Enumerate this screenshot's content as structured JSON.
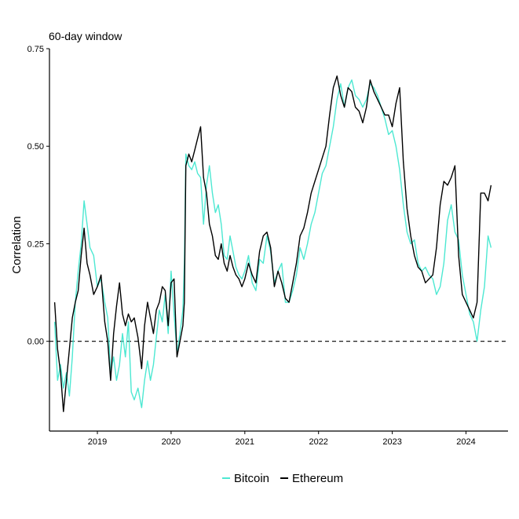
{
  "chart_data": {
    "type": "line",
    "title": "60-day window",
    "xlabel": "",
    "ylabel": "Correlation",
    "xlim": [
      2018.35,
      2024.57
    ],
    "ylim": [
      -0.23,
      0.75
    ],
    "x_ticks": [
      2019,
      2020,
      2021,
      2022,
      2023,
      2024
    ],
    "x_tick_labels": [
      "2019",
      "2020",
      "2021",
      "2022",
      "2023",
      "2024"
    ],
    "y_ticks": [
      0.0,
      0.25,
      0.5,
      0.75
    ],
    "y_tick_labels": [
      "0.00",
      "0.25",
      "0.50",
      "0.75"
    ],
    "reference_line": {
      "y": 0.0,
      "style": "dashed"
    },
    "grid": false,
    "legend_position": "bottom",
    "series": [
      {
        "name": "Bitcoin",
        "color": "#4DE8D2",
        "x": [
          2018.42,
          2018.46,
          2018.5,
          2018.54,
          2018.58,
          2018.62,
          2018.66,
          2018.7,
          2018.74,
          2018.78,
          2018.82,
          2018.86,
          2018.9,
          2018.95,
          2019.0,
          2019.05,
          2019.1,
          2019.14,
          2019.18,
          2019.22,
          2019.26,
          2019.3,
          2019.34,
          2019.38,
          2019.42,
          2019.46,
          2019.5,
          2019.55,
          2019.6,
          2019.64,
          2019.68,
          2019.72,
          2019.76,
          2019.8,
          2019.84,
          2019.88,
          2019.92,
          2019.96,
          2020.0,
          2020.04,
          2020.08,
          2020.12,
          2020.16,
          2020.18,
          2020.2,
          2020.24,
          2020.28,
          2020.32,
          2020.36,
          2020.4,
          2020.44,
          2020.48,
          2020.52,
          2020.56,
          2020.6,
          2020.64,
          2020.68,
          2020.72,
          2020.76,
          2020.8,
          2020.84,
          2020.88,
          2020.92,
          2020.96,
          2021.0,
          2021.05,
          2021.1,
          2021.15,
          2021.2,
          2021.25,
          2021.3,
          2021.35,
          2021.4,
          2021.45,
          2021.5,
          2021.55,
          2021.6,
          2021.65,
          2021.7,
          2021.75,
          2021.8,
          2021.85,
          2021.9,
          2021.95,
          2022.0,
          2022.05,
          2022.1,
          2022.15,
          2022.2,
          2022.25,
          2022.3,
          2022.35,
          2022.4,
          2022.45,
          2022.5,
          2022.55,
          2022.6,
          2022.65,
          2022.7,
          2022.75,
          2022.8,
          2022.85,
          2022.9,
          2022.95,
          2023.0,
          2023.05,
          2023.1,
          2023.15,
          2023.2,
          2023.25,
          2023.3,
          2023.35,
          2023.4,
          2023.45,
          2023.5,
          2023.55,
          2023.6,
          2023.65,
          2023.7,
          2023.75,
          2023.8,
          2023.85,
          2023.9,
          2023.95,
          2024.0,
          2024.05,
          2024.1,
          2024.15,
          2024.2,
          2024.25,
          2024.3,
          2024.34
        ],
        "y": [
          0.05,
          -0.1,
          -0.06,
          -0.12,
          -0.08,
          -0.14,
          -0.04,
          0.1,
          0.18,
          0.25,
          0.36,
          0.3,
          0.24,
          0.22,
          0.14,
          0.16,
          0.1,
          0.06,
          -0.08,
          -0.04,
          -0.1,
          -0.06,
          0.02,
          -0.04,
          0.05,
          -0.13,
          -0.15,
          -0.12,
          -0.17,
          -0.1,
          -0.05,
          -0.1,
          -0.06,
          0.01,
          0.08,
          0.05,
          0.12,
          0.02,
          0.18,
          0.07,
          -0.03,
          0.02,
          0.08,
          0.2,
          0.48,
          0.45,
          0.44,
          0.46,
          0.43,
          0.42,
          0.3,
          0.4,
          0.45,
          0.38,
          0.33,
          0.35,
          0.3,
          0.22,
          0.21,
          0.27,
          0.23,
          0.19,
          0.17,
          0.16,
          0.18,
          0.22,
          0.15,
          0.13,
          0.21,
          0.2,
          0.27,
          0.23,
          0.15,
          0.18,
          0.2,
          0.1,
          0.1,
          0.13,
          0.17,
          0.24,
          0.21,
          0.25,
          0.3,
          0.33,
          0.38,
          0.43,
          0.45,
          0.5,
          0.55,
          0.62,
          0.66,
          0.6,
          0.65,
          0.67,
          0.63,
          0.62,
          0.6,
          0.62,
          0.66,
          0.65,
          0.63,
          0.6,
          0.57,
          0.53,
          0.54,
          0.5,
          0.44,
          0.35,
          0.28,
          0.25,
          0.26,
          0.2,
          0.18,
          0.19,
          0.17,
          0.16,
          0.12,
          0.14,
          0.2,
          0.31,
          0.35,
          0.28,
          0.26,
          0.17,
          0.12,
          0.07,
          0.05,
          0.0,
          0.08,
          0.14,
          0.27,
          0.24
        ]
      },
      {
        "name": "Ethereum",
        "color": "#000000",
        "x": [
          2018.42,
          2018.46,
          2018.5,
          2018.54,
          2018.58,
          2018.62,
          2018.66,
          2018.7,
          2018.74,
          2018.78,
          2018.82,
          2018.86,
          2018.9,
          2018.95,
          2019.0,
          2019.05,
          2019.1,
          2019.14,
          2019.18,
          2019.22,
          2019.26,
          2019.3,
          2019.34,
          2019.38,
          2019.42,
          2019.46,
          2019.5,
          2019.55,
          2019.6,
          2019.64,
          2019.68,
          2019.72,
          2019.76,
          2019.8,
          2019.84,
          2019.88,
          2019.92,
          2019.96,
          2020.0,
          2020.04,
          2020.08,
          2020.12,
          2020.16,
          2020.18,
          2020.2,
          2020.24,
          2020.28,
          2020.32,
          2020.36,
          2020.4,
          2020.44,
          2020.48,
          2020.52,
          2020.56,
          2020.6,
          2020.64,
          2020.68,
          2020.72,
          2020.76,
          2020.8,
          2020.84,
          2020.88,
          2020.92,
          2020.96,
          2021.0,
          2021.05,
          2021.1,
          2021.15,
          2021.2,
          2021.25,
          2021.3,
          2021.35,
          2021.4,
          2021.45,
          2021.5,
          2021.55,
          2021.6,
          2021.65,
          2021.7,
          2021.75,
          2021.8,
          2021.85,
          2021.9,
          2021.95,
          2022.0,
          2022.05,
          2022.1,
          2022.15,
          2022.2,
          2022.25,
          2022.3,
          2022.35,
          2022.4,
          2022.45,
          2022.5,
          2022.55,
          2022.6,
          2022.65,
          2022.7,
          2022.75,
          2022.8,
          2022.85,
          2022.9,
          2022.95,
          2023.0,
          2023.05,
          2023.1,
          2023.15,
          2023.2,
          2023.25,
          2023.3,
          2023.35,
          2023.4,
          2023.45,
          2023.5,
          2023.55,
          2023.6,
          2023.65,
          2023.7,
          2023.75,
          2023.8,
          2023.85,
          2023.9,
          2023.95,
          2024.0,
          2024.05,
          2024.1,
          2024.15,
          2024.2,
          2024.25,
          2024.3,
          2024.34
        ],
        "y": [
          0.1,
          -0.02,
          -0.08,
          -0.18,
          -0.1,
          -0.02,
          0.06,
          0.1,
          0.13,
          0.22,
          0.29,
          0.2,
          0.17,
          0.12,
          0.14,
          0.17,
          0.05,
          0.0,
          -0.1,
          0.02,
          0.09,
          0.15,
          0.07,
          0.04,
          0.07,
          0.05,
          0.06,
          0.01,
          -0.07,
          0.04,
          0.1,
          0.06,
          0.02,
          0.08,
          0.1,
          0.14,
          0.13,
          0.04,
          0.15,
          0.16,
          -0.04,
          0.0,
          0.04,
          0.1,
          0.45,
          0.48,
          0.46,
          0.49,
          0.52,
          0.55,
          0.42,
          0.38,
          0.3,
          0.27,
          0.22,
          0.21,
          0.25,
          0.2,
          0.18,
          0.22,
          0.19,
          0.17,
          0.16,
          0.14,
          0.16,
          0.2,
          0.17,
          0.15,
          0.23,
          0.27,
          0.28,
          0.24,
          0.14,
          0.18,
          0.15,
          0.11,
          0.1,
          0.15,
          0.2,
          0.27,
          0.29,
          0.33,
          0.38,
          0.41,
          0.44,
          0.47,
          0.5,
          0.58,
          0.65,
          0.68,
          0.63,
          0.6,
          0.65,
          0.64,
          0.6,
          0.59,
          0.56,
          0.6,
          0.67,
          0.64,
          0.62,
          0.6,
          0.58,
          0.58,
          0.55,
          0.61,
          0.65,
          0.46,
          0.34,
          0.27,
          0.22,
          0.19,
          0.18,
          0.15,
          0.16,
          0.17,
          0.24,
          0.35,
          0.41,
          0.4,
          0.42,
          0.45,
          0.22,
          0.12,
          0.1,
          0.08,
          0.06,
          0.1,
          0.38,
          0.38,
          0.36,
          0.4
        ]
      }
    ]
  }
}
